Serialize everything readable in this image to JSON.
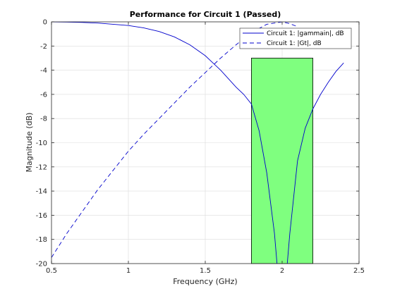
{
  "chart_data": {
    "type": "line",
    "title": "Performance for Circuit 1 (Passed)",
    "xlabel": "Frequency (GHz)",
    "ylabel": "Magnitude (dB)",
    "xlim": [
      0.5,
      2.5
    ],
    "ylim": [
      -20,
      0
    ],
    "xticks": [
      0.5,
      1,
      1.5,
      2,
      2.5
    ],
    "xtick_labels": [
      "0.5",
      "1",
      "1.5",
      "2",
      "2.5"
    ],
    "yticks": [
      0,
      -2,
      -4,
      -6,
      -8,
      -10,
      -12,
      -14,
      -16,
      -18,
      -20
    ],
    "ytick_labels": [
      "0",
      "-2",
      "-4",
      "-6",
      "-8",
      "-10",
      "-12",
      "-14",
      "-16",
      "-18",
      "-20"
    ],
    "grid": true,
    "legend_position": "top-right",
    "series": [
      {
        "name": "Circuit 1: |gammain|, dB",
        "style": "solid",
        "color": "#0000cc",
        "x": [
          0.5,
          0.6,
          0.7,
          0.8,
          0.9,
          1.0,
          1.1,
          1.2,
          1.3,
          1.4,
          1.5,
          1.55,
          1.6,
          1.65,
          1.7,
          1.75,
          1.8,
          1.85,
          1.9,
          1.95,
          1.97,
          2.0,
          2.03,
          2.05,
          2.1,
          2.15,
          2.2,
          2.25,
          2.3,
          2.35,
          2.4
        ],
        "y": [
          0,
          -0.02,
          -0.05,
          -0.1,
          -0.2,
          -0.3,
          -0.5,
          -0.8,
          -1.25,
          -1.9,
          -2.8,
          -3.4,
          -4.0,
          -4.7,
          -5.4,
          -6.0,
          -6.8,
          -9.0,
          -12.5,
          -17.5,
          -20.5,
          null,
          -20.5,
          -17.5,
          -11.5,
          -8.8,
          -7.2,
          -6.0,
          -5.0,
          -4.1,
          -3.4
        ]
      },
      {
        "name": "Circuit 1: |Gt|, dB",
        "style": "dashed",
        "color": "#0000cc",
        "x": [
          0.5,
          0.6,
          0.7,
          0.8,
          0.9,
          1.0,
          1.1,
          1.2,
          1.3,
          1.4,
          1.5,
          1.6,
          1.7,
          1.8,
          1.9,
          2.0,
          2.05,
          2.1
        ],
        "y": [
          -19.5,
          -17.5,
          -15.7,
          -13.9,
          -12.3,
          -10.7,
          -9.3,
          -8.0,
          -6.7,
          -5.4,
          -4.2,
          -3.0,
          -1.9,
          -0.9,
          -0.2,
          0,
          -0.15,
          -0.4
        ]
      }
    ],
    "annotations": [
      {
        "type": "shaded-region",
        "x0": 1.8,
        "x1": 2.2,
        "y0": -20,
        "y1": -3,
        "color": "#7fff7f"
      }
    ]
  }
}
